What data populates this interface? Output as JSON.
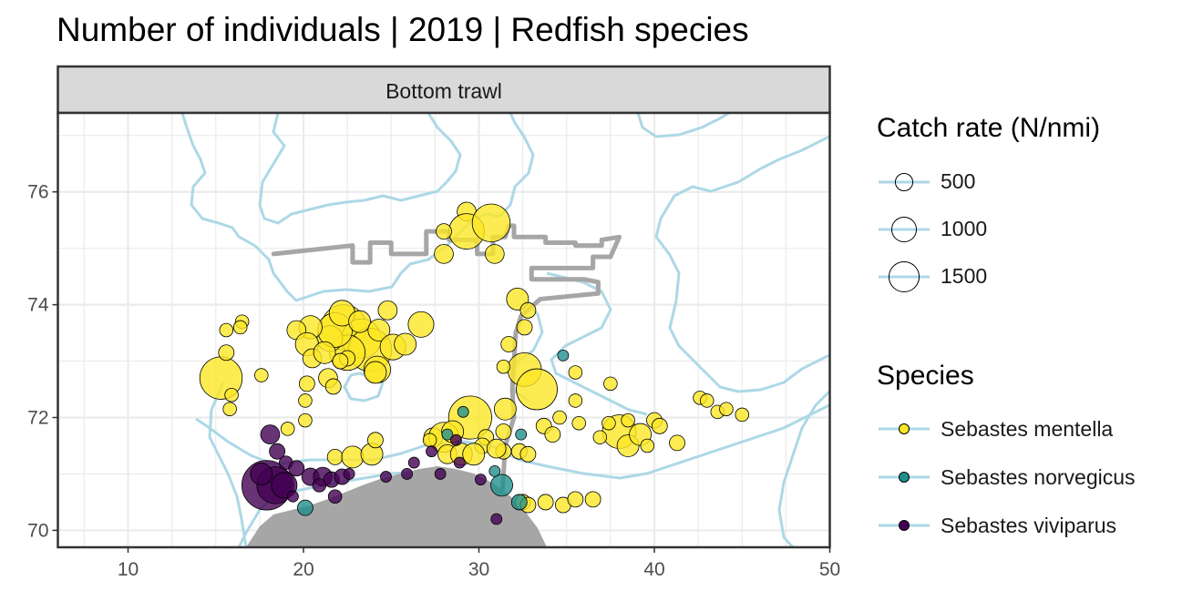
{
  "title": "Number of individuals | 2019 | Redfish species",
  "colors": {
    "sebastes_mentella": "#FDE725",
    "sebastes_norvegicus": "#21908C",
    "sebastes_viviparus": "#440154",
    "coastline": "#ADD8E6",
    "track": "#A6A6A6",
    "strip_fill": "#D9D9D9"
  },
  "chart_data": {
    "type": "scatter",
    "facet_label": "Bottom trawl",
    "x_ticks": [
      "10",
      "20",
      "30",
      "40",
      "50"
    ],
    "y_ticks": [
      "70",
      "72",
      "74",
      "76"
    ],
    "xlim": [
      6,
      50
    ],
    "ylim": [
      69.7,
      77.4
    ],
    "grid": true,
    "legend_position": "right",
    "size_legend": {
      "title": "Catch rate (N/nmi)",
      "breaks": [
        {
          "value": 500,
          "label": "500"
        },
        {
          "value": 1000,
          "label": "1000"
        },
        {
          "value": 1500,
          "label": "1500"
        }
      ]
    },
    "color_legend": {
      "title": "Species",
      "entries": [
        {
          "label": "Sebastes mentella",
          "color": "#FDE725"
        },
        {
          "label": "Sebastes norvegicus",
          "color": "#21908C"
        },
        {
          "label": "Sebastes viviparus",
          "color": "#440154"
        }
      ]
    },
    "survey_track": [
      [
        18.3,
        74.9
      ],
      [
        22.8,
        75.05
      ],
      [
        22.8,
        74.75
      ],
      [
        23.8,
        74.75
      ],
      [
        23.8,
        75.1
      ],
      [
        25,
        75.1
      ],
      [
        25,
        74.9
      ],
      [
        27,
        74.9
      ],
      [
        27,
        75.3
      ],
      [
        28.3,
        75.3
      ],
      [
        28.3,
        75.15
      ],
      [
        29.9,
        75.15
      ],
      [
        29.9,
        74.9
      ],
      [
        30.8,
        74.9
      ],
      [
        30.8,
        75.2
      ],
      [
        31.5,
        75.2
      ],
      [
        31.7,
        75.4
      ],
      [
        32,
        75.4
      ],
      [
        32,
        75.2
      ],
      [
        33.8,
        75.2
      ],
      [
        33.8,
        75.1
      ],
      [
        35.5,
        75.1
      ],
      [
        35.5,
        75.05
      ],
      [
        37,
        75.05
      ],
      [
        37,
        75.15
      ],
      [
        38,
        75.2
      ],
      [
        37.5,
        74.85
      ],
      [
        36.5,
        74.85
      ],
      [
        36.5,
        74.65
      ],
      [
        33,
        74.65
      ],
      [
        33,
        74.45
      ],
      [
        36,
        74.45
      ],
      [
        36.8,
        74.4
      ],
      [
        36.8,
        74.2
      ],
      [
        33.5,
        74.1
      ],
      [
        32.4,
        73.8
      ],
      [
        32.1,
        73.5
      ],
      [
        32,
        73.0
      ],
      [
        31.9,
        72.5
      ],
      [
        32,
        72
      ],
      [
        31.5,
        71.5
      ],
      [
        31.3,
        70.5
      ],
      [
        31.5,
        69.7
      ]
    ],
    "series": [
      {
        "name": "Sebastes mentella",
        "points": [
          [
            29.3,
            75.65,
            120
          ],
          [
            29.3,
            75.3,
            420
          ],
          [
            30.7,
            75.45,
            480
          ],
          [
            28,
            75.3,
            80
          ],
          [
            28,
            74.9,
            120
          ],
          [
            30.9,
            74.9,
            120
          ],
          [
            32.2,
            74.1,
            160
          ],
          [
            32.8,
            73.9,
            80
          ],
          [
            32.6,
            73.6,
            80
          ],
          [
            31.7,
            73.3,
            80
          ],
          [
            32.6,
            72.85,
            380
          ],
          [
            31.4,
            72.9,
            60
          ],
          [
            33.3,
            72.5,
            560
          ],
          [
            31.5,
            72.15,
            160
          ],
          [
            29.5,
            72.0,
            620
          ],
          [
            31.4,
            71.75,
            80
          ],
          [
            30.4,
            71.65,
            80
          ],
          [
            30.2,
            71.5,
            80
          ],
          [
            31.4,
            71.4,
            80
          ],
          [
            32.3,
            71.4,
            80
          ],
          [
            32.8,
            71.35,
            80
          ],
          [
            33.7,
            71.85,
            80
          ],
          [
            34.6,
            72.0,
            60
          ],
          [
            34.2,
            71.7,
            80
          ],
          [
            32.5,
            70.5,
            80
          ],
          [
            32.8,
            70.45,
            80
          ],
          [
            33.8,
            70.5,
            80
          ],
          [
            34.8,
            70.45,
            80
          ],
          [
            35.5,
            70.55,
            80
          ],
          [
            36.5,
            70.55,
            80
          ],
          [
            35.7,
            71.9,
            60
          ],
          [
            35.5,
            72.3,
            60
          ],
          [
            35.5,
            72.8,
            60
          ],
          [
            37.5,
            72.6,
            60
          ],
          [
            38,
            71.75,
            380
          ],
          [
            38.5,
            71.5,
            160
          ],
          [
            39.2,
            71.7,
            160
          ],
          [
            39.6,
            71.5,
            60
          ],
          [
            37.4,
            71.9,
            60
          ],
          [
            38.5,
            71.95,
            60
          ],
          [
            36.9,
            71.65,
            60
          ],
          [
            40,
            71.95,
            80
          ],
          [
            40.3,
            71.85,
            80
          ],
          [
            41.3,
            71.55,
            80
          ],
          [
            42.6,
            72.35,
            60
          ],
          [
            43,
            72.3,
            60
          ],
          [
            43.6,
            72.1,
            60
          ],
          [
            44.1,
            72.15,
            60
          ],
          [
            45,
            72.05,
            60
          ],
          [
            27.4,
            71.65,
            120
          ],
          [
            28,
            71.65,
            300
          ],
          [
            28.5,
            71.75,
            160
          ],
          [
            28.2,
            71.35,
            120
          ],
          [
            29,
            71.35,
            160
          ],
          [
            29.7,
            71.35,
            160
          ],
          [
            31,
            71.45,
            120
          ],
          [
            22.3,
            73.6,
            680
          ],
          [
            23.3,
            73.4,
            520
          ],
          [
            23.8,
            73.2,
            620
          ],
          [
            22.5,
            73.15,
            420
          ],
          [
            21.5,
            73.4,
            220
          ],
          [
            21.8,
            73.55,
            400
          ],
          [
            20.4,
            73.6,
            180
          ],
          [
            19.6,
            73.55,
            120
          ],
          [
            20.2,
            73.3,
            180
          ],
          [
            20.5,
            73.05,
            120
          ],
          [
            21.2,
            73.15,
            160
          ],
          [
            22.2,
            73.85,
            220
          ],
          [
            23.2,
            73.7,
            160
          ],
          [
            24.3,
            73.55,
            160
          ],
          [
            24.8,
            73.9,
            120
          ],
          [
            25.1,
            73.25,
            220
          ],
          [
            26.7,
            73.65,
            220
          ],
          [
            25.8,
            73.3,
            160
          ],
          [
            24.2,
            72.85,
            240
          ],
          [
            24.1,
            72.8,
            160
          ],
          [
            22.5,
            73.05,
            80
          ],
          [
            22.1,
            73.0,
            80
          ],
          [
            21.4,
            72.7,
            120
          ],
          [
            20.2,
            72.6,
            80
          ],
          [
            20.1,
            72.3,
            60
          ],
          [
            21.7,
            72.55,
            80
          ],
          [
            20.1,
            71.95,
            60
          ],
          [
            19.1,
            71.8,
            60
          ],
          [
            15.3,
            72.7,
            600
          ],
          [
            15.6,
            73.15,
            80
          ],
          [
            15.6,
            73.55,
            60
          ],
          [
            16.5,
            73.7,
            60
          ],
          [
            16.4,
            73.6,
            60
          ],
          [
            15.9,
            72.4,
            60
          ],
          [
            15.8,
            72.15,
            60
          ],
          [
            17.6,
            72.75,
            60
          ],
          [
            21.8,
            71.3,
            80
          ],
          [
            22.8,
            71.3,
            160
          ],
          [
            23.9,
            71.35,
            160
          ],
          [
            24.1,
            71.6,
            80
          ],
          [
            27.2,
            71.6,
            60
          ]
        ]
      },
      {
        "name": "Sebastes norvegicus",
        "points": [
          [
            31.3,
            70.8,
            160
          ],
          [
            32.3,
            70.5,
            80
          ],
          [
            20.1,
            70.4,
            80
          ],
          [
            30.9,
            71.05,
            40
          ],
          [
            28.2,
            71.7,
            40
          ],
          [
            34.8,
            73.1,
            40
          ],
          [
            32.4,
            71.7,
            40
          ],
          [
            29.1,
            72.1,
            40
          ]
        ]
      },
      {
        "name": "Sebastes viviparus",
        "points": [
          [
            17.9,
            70.8,
            820
          ],
          [
            18.4,
            70.8,
            460
          ],
          [
            18.9,
            70.8,
            220
          ],
          [
            17.6,
            71.0,
            160
          ],
          [
            18.5,
            71.4,
            80
          ],
          [
            18.1,
            71.7,
            120
          ],
          [
            19,
            71.2,
            60
          ],
          [
            19.6,
            71.1,
            80
          ],
          [
            20.4,
            70.95,
            100
          ],
          [
            21.1,
            70.95,
            120
          ],
          [
            21.6,
            70.9,
            80
          ],
          [
            22.2,
            70.95,
            80
          ],
          [
            20.9,
            70.8,
            60
          ],
          [
            21.8,
            70.6,
            60
          ],
          [
            22.6,
            71.0,
            40
          ],
          [
            25.9,
            71.0,
            40
          ],
          [
            26.3,
            71.2,
            40
          ],
          [
            27.8,
            71.0,
            40
          ],
          [
            28.9,
            71.2,
            40
          ],
          [
            30.1,
            70.9,
            40
          ],
          [
            24.7,
            70.95,
            40
          ],
          [
            19.4,
            70.6,
            40
          ],
          [
            28.7,
            71.6,
            40
          ],
          [
            27.3,
            71.4,
            40
          ],
          [
            31,
            70.2,
            40
          ]
        ]
      }
    ]
  }
}
